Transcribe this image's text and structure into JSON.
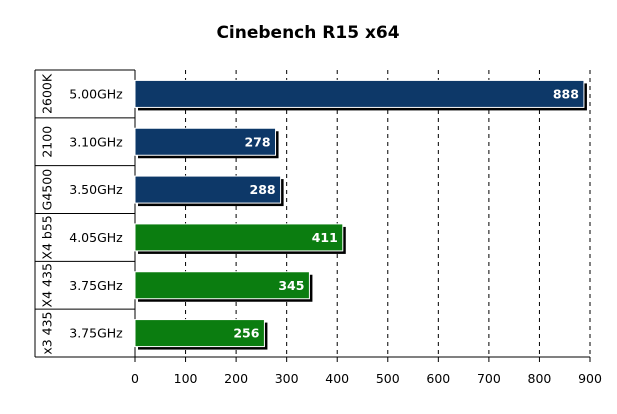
{
  "chart_data": {
    "type": "bar",
    "orientation": "horizontal",
    "title": "Cinebench R15 x64",
    "xlabel": "",
    "ylabel": "",
    "xlim": [
      0,
      900
    ],
    "x_ticks": [
      0,
      100,
      200,
      300,
      400,
      500,
      600,
      700,
      800,
      900
    ],
    "grid": "vertical dashed",
    "legend": "none",
    "categories": [
      {
        "group": "2600K",
        "label": "5.00GHz",
        "value": 888,
        "color": "#0d3868"
      },
      {
        "group": "2100",
        "label": "3.10GHz",
        "value": 278,
        "color": "#0d3868"
      },
      {
        "group": "G4500",
        "label": "3.50GHz",
        "value": 288,
        "color": "#0d3868"
      },
      {
        "group": "X4 b55",
        "label": "4.05GHz",
        "value": 411,
        "color": "#0b7d10"
      },
      {
        "group": "X4 435",
        "label": "3.75GHz",
        "value": 345,
        "color": "#0b7d10"
      },
      {
        "group": "x3 435",
        "label": "3.75GHz",
        "value": 256,
        "color": "#0b7d10"
      }
    ]
  }
}
